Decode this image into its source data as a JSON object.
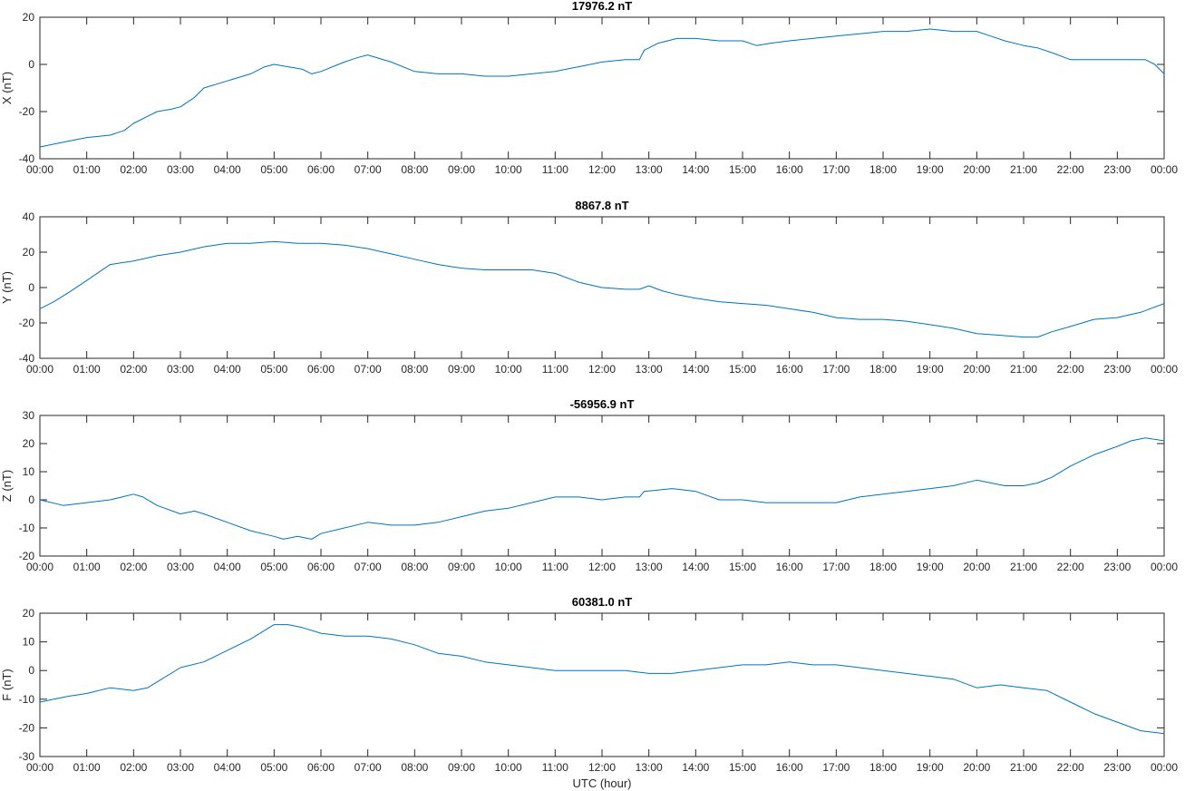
{
  "colors": {
    "series": "#0072bd",
    "axes": "#262626"
  },
  "chart_data": [
    {
      "type": "line",
      "title": "17976.2 nT",
      "xlabel": "",
      "ylabel": "X (nT)",
      "xlim": [
        0,
        24
      ],
      "ylim": [
        -40,
        20
      ],
      "yticks": [
        -40,
        -20,
        0,
        20
      ],
      "xticks": [
        "00:00",
        "01:00",
        "02:00",
        "03:00",
        "04:00",
        "05:00",
        "06:00",
        "07:00",
        "08:00",
        "09:00",
        "10:00",
        "11:00",
        "12:00",
        "13:00",
        "14:00",
        "15:00",
        "16:00",
        "17:00",
        "18:00",
        "19:00",
        "20:00",
        "21:00",
        "22:00",
        "23:00",
        "00:00"
      ],
      "grid": false,
      "series": [
        {
          "x": [
            0,
            0.5,
            1,
            1.5,
            1.8,
            2,
            2.5,
            2.8,
            3,
            3.3,
            3.5,
            4,
            4.5,
            4.8,
            5,
            5.3,
            5.6,
            5.8,
            6,
            6.5,
            6.8,
            7,
            7.5,
            8,
            8.5,
            9,
            9.5,
            10,
            10.5,
            11,
            11.5,
            12,
            12.5,
            12.8,
            12.9,
            13.2,
            13.6,
            14,
            14.5,
            15,
            15.3,
            15.6,
            16,
            16.5,
            17,
            17.5,
            18,
            18.5,
            19,
            19.5,
            20,
            20.3,
            20.6,
            21,
            21.3,
            21.6,
            22,
            22.3,
            22.6,
            23,
            23.3,
            23.6,
            23.8,
            24
          ],
          "y": [
            -35,
            -33,
            -31,
            -30,
            -28,
            -25,
            -20,
            -19,
            -18,
            -14,
            -10,
            -7,
            -4,
            -1,
            0,
            -1,
            -2,
            -4,
            -3,
            1,
            3,
            4,
            1,
            -3,
            -4,
            -4,
            -5,
            -5,
            -4,
            -3,
            -1,
            1,
            2,
            2,
            6,
            9,
            11,
            11,
            10,
            10,
            8,
            9,
            10,
            11,
            12,
            13,
            14,
            14,
            15,
            14,
            14,
            12,
            10,
            8,
            7,
            5,
            2,
            2,
            2,
            2,
            2,
            2,
            0,
            -4
          ]
        }
      ]
    },
    {
      "type": "line",
      "title": "8867.8 nT",
      "xlabel": "",
      "ylabel": "Y (nT)",
      "xlim": [
        0,
        24
      ],
      "ylim": [
        -40,
        40
      ],
      "yticks": [
        -40,
        -20,
        0,
        20,
        40
      ],
      "xticks": [
        "00:00",
        "01:00",
        "02:00",
        "03:00",
        "04:00",
        "05:00",
        "06:00",
        "07:00",
        "08:00",
        "09:00",
        "10:00",
        "11:00",
        "12:00",
        "13:00",
        "14:00",
        "15:00",
        "16:00",
        "17:00",
        "18:00",
        "19:00",
        "20:00",
        "21:00",
        "22:00",
        "23:00",
        "00:00"
      ],
      "grid": false,
      "series": [
        {
          "x": [
            0,
            0.3,
            0.6,
            1,
            1.5,
            2,
            2.5,
            3,
            3.5,
            4,
            4.5,
            5,
            5.5,
            6,
            6.5,
            7,
            7.5,
            8,
            8.5,
            9,
            9.5,
            10,
            10.5,
            11,
            11.5,
            12,
            12.5,
            12.8,
            13,
            13.3,
            13.6,
            14,
            14.5,
            15,
            15.5,
            16,
            16.5,
            17,
            17.5,
            18,
            18.5,
            19,
            19.5,
            20,
            20.5,
            21,
            21.3,
            21.6,
            22,
            22.5,
            23,
            23.5,
            24
          ],
          "y": [
            -12,
            -8,
            -3,
            4,
            13,
            15,
            18,
            20,
            23,
            25,
            25,
            26,
            25,
            25,
            24,
            22,
            19,
            16,
            13,
            11,
            10,
            10,
            10,
            8,
            3,
            0,
            -1,
            -1,
            1,
            -2,
            -4,
            -6,
            -8,
            -9,
            -10,
            -12,
            -14,
            -17,
            -18,
            -18,
            -19,
            -21,
            -23,
            -26,
            -27,
            -28,
            -28,
            -25,
            -22,
            -18,
            -17,
            -14,
            -9
          ]
        }
      ]
    },
    {
      "type": "line",
      "title": "-56956.9 nT",
      "xlabel": "",
      "ylabel": "Z (nT)",
      "xlim": [
        0,
        24
      ],
      "ylim": [
        -20,
        30
      ],
      "yticks": [
        -20,
        -10,
        0,
        10,
        20,
        30
      ],
      "xticks": [
        "00:00",
        "01:00",
        "02:00",
        "03:00",
        "04:00",
        "05:00",
        "06:00",
        "07:00",
        "08:00",
        "09:00",
        "10:00",
        "11:00",
        "12:00",
        "13:00",
        "14:00",
        "15:00",
        "16:00",
        "17:00",
        "18:00",
        "19:00",
        "20:00",
        "21:00",
        "22:00",
        "23:00",
        "00:00"
      ],
      "grid": false,
      "series": [
        {
          "x": [
            0,
            0.5,
            1,
            1.5,
            2,
            2.2,
            2.5,
            3,
            3.3,
            3.5,
            4,
            4.5,
            5,
            5.2,
            5.5,
            5.8,
            6,
            6.5,
            7,
            7.5,
            8,
            8.5,
            9,
            9.5,
            10,
            10.5,
            11,
            11.5,
            12,
            12.5,
            12.8,
            12.9,
            13.5,
            14,
            14.5,
            15,
            15.5,
            16,
            16.5,
            17,
            17.5,
            18,
            18.5,
            19,
            19.5,
            20,
            20.3,
            20.6,
            21,
            21.3,
            21.6,
            22,
            22.5,
            23,
            23.3,
            23.6,
            24
          ],
          "y": [
            0,
            -2,
            -1,
            0,
            2,
            1,
            -2,
            -5,
            -4,
            -5,
            -8,
            -11,
            -13,
            -14,
            -13,
            -14,
            -12,
            -10,
            -8,
            -9,
            -9,
            -8,
            -6,
            -4,
            -3,
            -1,
            1,
            1,
            0,
            1,
            1,
            3,
            4,
            3,
            0,
            0,
            -1,
            -1,
            -1,
            -1,
            1,
            2,
            3,
            4,
            5,
            7,
            6,
            5,
            5,
            6,
            8,
            12,
            16,
            19,
            21,
            22,
            21
          ]
        }
      ]
    },
    {
      "type": "line",
      "title": "60381.0 nT",
      "xlabel": "UTC (hour)",
      "ylabel": "F (nT)",
      "xlim": [
        0,
        24
      ],
      "ylim": [
        -30,
        20
      ],
      "yticks": [
        -30,
        -20,
        -10,
        0,
        10,
        20
      ],
      "xticks": [
        "00:00",
        "01:00",
        "02:00",
        "03:00",
        "04:00",
        "05:00",
        "06:00",
        "07:00",
        "08:00",
        "09:00",
        "10:00",
        "11:00",
        "12:00",
        "13:00",
        "14:00",
        "15:00",
        "16:00",
        "17:00",
        "18:00",
        "19:00",
        "20:00",
        "21:00",
        "22:00",
        "23:00",
        "00:00"
      ],
      "grid": false,
      "series": [
        {
          "x": [
            0,
            0.3,
            0.6,
            1,
            1.5,
            2,
            2.3,
            2.6,
            3,
            3.5,
            4,
            4.5,
            5,
            5.3,
            5.6,
            6,
            6.5,
            7,
            7.5,
            8,
            8.5,
            9,
            9.5,
            10,
            10.5,
            11,
            11.5,
            12,
            12.5,
            13,
            13.5,
            14,
            14.5,
            15,
            15.5,
            16,
            16.5,
            17,
            17.5,
            18,
            18.5,
            19,
            19.5,
            20,
            20.5,
            21,
            21.5,
            22,
            22.5,
            23,
            23.5,
            24
          ],
          "y": [
            -11,
            -10,
            -9,
            -8,
            -6,
            -7,
            -6,
            -3,
            1,
            3,
            7,
            11,
            16,
            16,
            15,
            13,
            12,
            12,
            11,
            9,
            6,
            5,
            3,
            2,
            1,
            0,
            0,
            0,
            0,
            -1,
            -1,
            0,
            1,
            2,
            2,
            3,
            2,
            2,
            1,
            0,
            -1,
            -2,
            -3,
            -6,
            -5,
            -6,
            -7,
            -11,
            -15,
            -18,
            -21,
            -22
          ]
        }
      ]
    }
  ]
}
